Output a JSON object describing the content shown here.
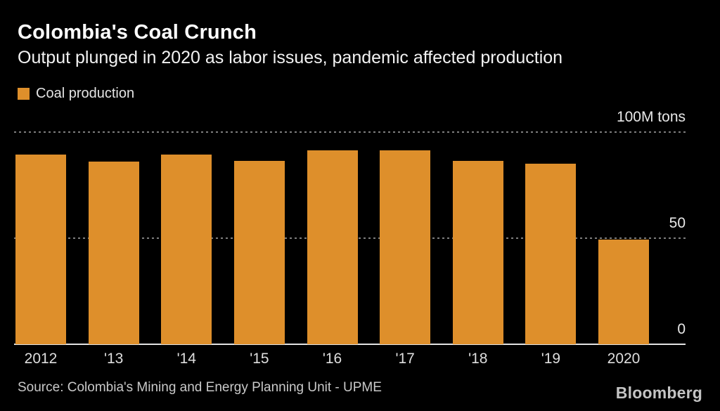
{
  "header": {
    "title": "Colombia's Coal Crunch",
    "subtitle": "Output plunged in 2020 as labor issues, pandemic affected production"
  },
  "legend": {
    "label": "Coal production",
    "swatch_color": "#DE8F2B"
  },
  "chart_data": {
    "type": "bar",
    "title": "Colombia's Coal Crunch",
    "subtitle": "Output plunged in 2020 as labor issues, pandemic affected production",
    "series_name": "Coal production",
    "categories": [
      "2012",
      "'13",
      "'14",
      "'15",
      "'16",
      "'17",
      "'18",
      "'19",
      "2020"
    ],
    "values": [
      89.5,
      86,
      89.5,
      86.5,
      91.5,
      91.5,
      86.5,
      85,
      49.5
    ],
    "unit": "M tons",
    "bar_color": "#DE8F2B",
    "ylim": [
      0,
      100
    ],
    "yticks": [
      {
        "value": 100,
        "label": "100M tons"
      },
      {
        "value": 50,
        "label": "50"
      },
      {
        "value": 0,
        "label": "0"
      }
    ],
    "grid": "horizontal dotted gridlines at 50 and 100, solid baseline at 0",
    "legend_position": "top-left",
    "background_color": "#000000"
  },
  "footer": {
    "source": "Source: Colombia's Mining and Energy Planning Unit - UPME",
    "brand": "Bloomberg"
  }
}
